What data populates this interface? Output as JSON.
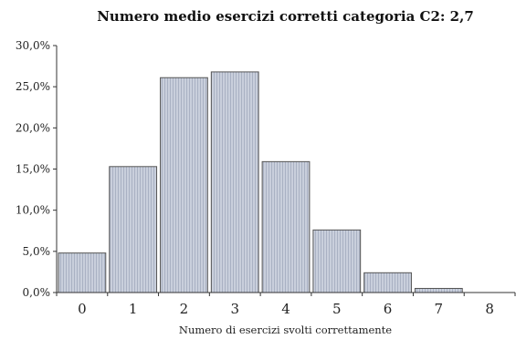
{
  "chart_data": {
    "type": "bar",
    "title": "Numero medio esercizi corretti categoria C2: 2,7",
    "xlabel": "Numero di esercizi svolti correttamente",
    "ylabel": "",
    "categories": [
      "0",
      "1",
      "2",
      "3",
      "4",
      "5",
      "6",
      "7",
      "8"
    ],
    "values": [
      4.8,
      15.3,
      26.1,
      26.8,
      15.9,
      7.6,
      2.4,
      0.5,
      0.0
    ],
    "ylim": [
      0,
      30
    ],
    "yticks": [
      "0,0%",
      "5,0%",
      "10,0%",
      "15,0%",
      "20,0%",
      "25,0%",
      "30,0%"
    ],
    "grid": false,
    "bar_color": "#c9cfdc",
    "bar_stripe_color": "#a9b1c3",
    "bar_edge_color": "#555555"
  }
}
